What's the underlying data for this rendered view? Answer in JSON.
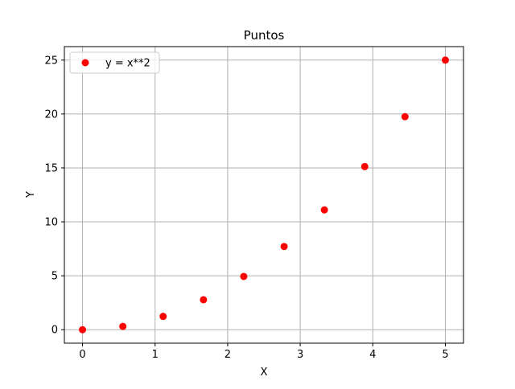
{
  "chart_data": {
    "type": "scatter",
    "title": "Puntos",
    "xlabel": "X",
    "ylabel": "Y",
    "xlim": [
      -0.25,
      5.25
    ],
    "ylim": [
      -1.25,
      26.25
    ],
    "xticks": [
      0,
      1,
      2,
      3,
      4,
      5
    ],
    "yticks": [
      0,
      5,
      10,
      15,
      20,
      25
    ],
    "grid": true,
    "legend_position": "top-left",
    "series": [
      {
        "name": "y = x**2",
        "color": "#ff0000",
        "marker": "circle",
        "x": [
          0,
          0.556,
          1.111,
          1.667,
          2.222,
          2.778,
          3.333,
          3.889,
          4.444,
          5.0
        ],
        "y": [
          0,
          0.309,
          1.235,
          2.778,
          4.938,
          7.716,
          11.111,
          15.123,
          19.753,
          25.0
        ]
      }
    ]
  }
}
